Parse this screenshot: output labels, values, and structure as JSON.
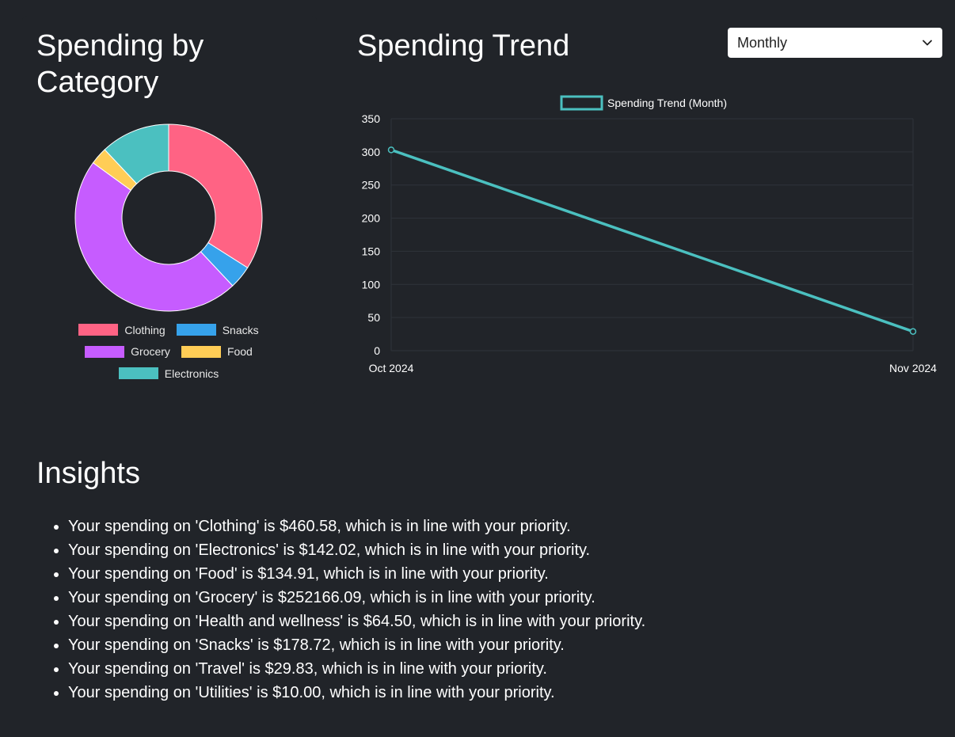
{
  "category": {
    "title": "Spending by Category",
    "chart_data": {
      "type": "pie",
      "variant": "doughnut",
      "labels": [
        "Clothing",
        "Snacks",
        "Grocery",
        "Food",
        "Electronics"
      ],
      "values": [
        34,
        4,
        47,
        3,
        12
      ],
      "colors": [
        "#ff6384",
        "#36a2eb",
        "#c65cff",
        "#ffcd56",
        "#4bc0c0"
      ],
      "legend": "bottom"
    }
  },
  "trend": {
    "title": "Spending Trend",
    "period_select": {
      "value": "Monthly"
    },
    "chart_data": {
      "type": "line",
      "x": [
        "Oct 2024",
        "Nov 2024"
      ],
      "series": [
        {
          "name": "Spending Trend (Month)",
          "values": [
            303,
            29
          ],
          "color": "#4bc0c0"
        }
      ],
      "ylim": [
        0,
        350
      ],
      "yticks": [
        0,
        50,
        100,
        150,
        200,
        250,
        300,
        350
      ],
      "grid": true,
      "legend": "top"
    }
  },
  "insights": {
    "title": "Insights",
    "items": [
      "Your spending on 'Clothing' is $460.58, which is in line with your priority.",
      "Your spending on 'Electronics' is $142.02, which is in line with your priority.",
      "Your spending on 'Food' is $134.91, which is in line with your priority.",
      "Your spending on 'Grocery' is $252166.09, which is in line with your priority.",
      "Your spending on 'Health and wellness' is $64.50, which is in line with your priority.",
      "Your spending on 'Snacks' is $178.72, which is in line with your priority.",
      "Your spending on 'Travel' is $29.83, which is in line with your priority.",
      "Your spending on 'Utilities' is $10.00, which is in line with your priority."
    ]
  }
}
